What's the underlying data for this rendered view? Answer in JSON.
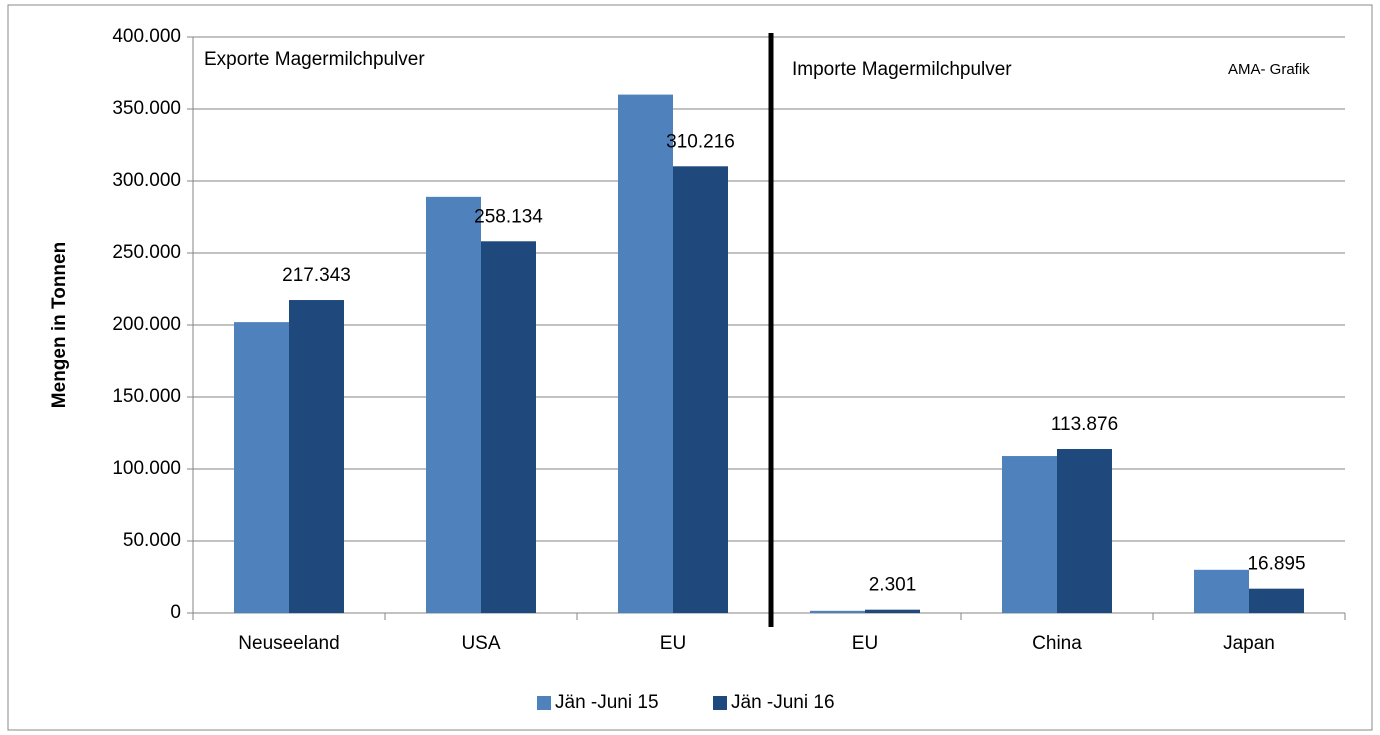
{
  "chart_data": {
    "type": "bar",
    "y_label": "Mengen in Tonnen",
    "annotations": [
      "Exporte Magermilchpulver",
      "Importe Magermilchpulver",
      "AMA- Grafik"
    ],
    "categories": [
      "Neuseeland",
      "USA",
      "EU",
      "EU",
      "China",
      "Japan"
    ],
    "series": [
      {
        "name": "Jän -Juni 15",
        "color": "#4f81bd",
        "values": [
          202000,
          289000,
          360000,
          1500,
          109000,
          30000
        ]
      },
      {
        "name": "Jän -Juni 16",
        "color": "#1f497d",
        "values": [
          217343,
          258134,
          310216,
          2301,
          113876,
          16895
        ],
        "value_labels": [
          "217.343",
          "258.134",
          "310.216",
          "2.301",
          "113.876",
          "16.895"
        ]
      }
    ],
    "ylim": [
      0,
      400000
    ],
    "yticks": [
      0,
      {
        "value": 50000,
        "label": "50.000"
      },
      {
        "value": 100000,
        "label": "100.000"
      },
      {
        "value": 150000,
        "label": "150.000"
      },
      {
        "value": 200000,
        "label": "200.000"
      },
      {
        "value": 250000,
        "label": "250.000"
      },
      {
        "value": 300000,
        "label": "300.000"
      },
      {
        "value": 350000,
        "label": "350.000"
      },
      {
        "value": 400000,
        "label": "400.000"
      }
    ],
    "grid": true,
    "legend": "bottom"
  }
}
